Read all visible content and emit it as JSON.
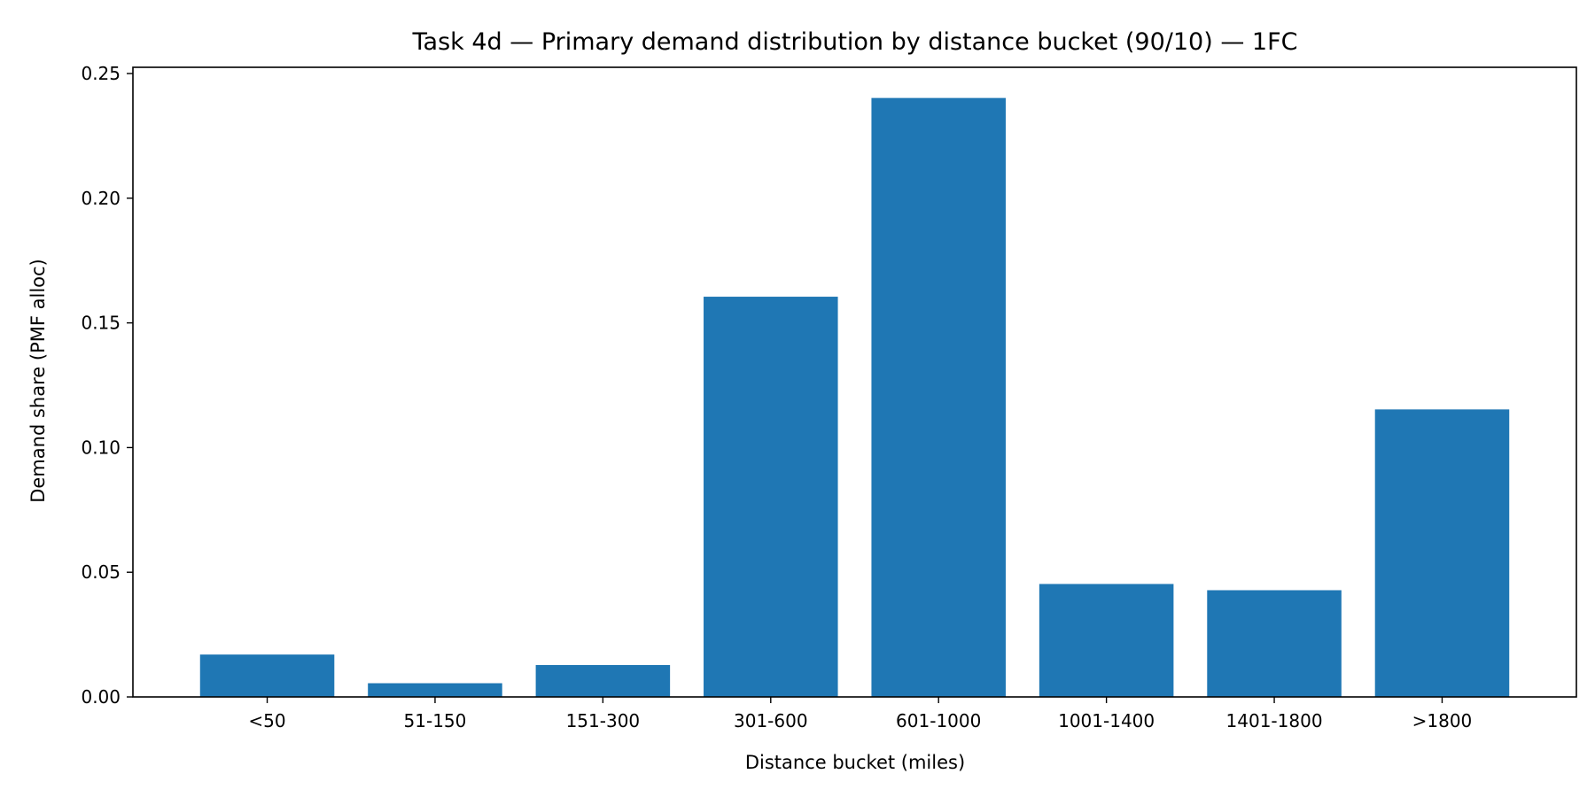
{
  "chart_data": {
    "type": "bar",
    "title": "Task 4d — Primary demand distribution by distance bucket (90/10) — 1FC",
    "xlabel": "Distance bucket (miles)",
    "ylabel": "Demand share (PMF alloc)",
    "categories": [
      "<50",
      "51-150",
      "151-300",
      "301-600",
      "601-1000",
      "1001-1400",
      "1401-1800",
      ">1800"
    ],
    "values": [
      0.017,
      0.0055,
      0.0128,
      0.1605,
      0.2402,
      0.0453,
      0.0428,
      0.1153
    ],
    "ylim": [
      0,
      0.2525
    ],
    "yticks": [
      0.0,
      0.05,
      0.1,
      0.15,
      0.2,
      0.25
    ],
    "ytick_labels": [
      "0.00",
      "0.05",
      "0.10",
      "0.15",
      "0.20",
      "0.25"
    ],
    "bar_color": "#1f77b4",
    "grid": false,
    "legend": "none"
  }
}
